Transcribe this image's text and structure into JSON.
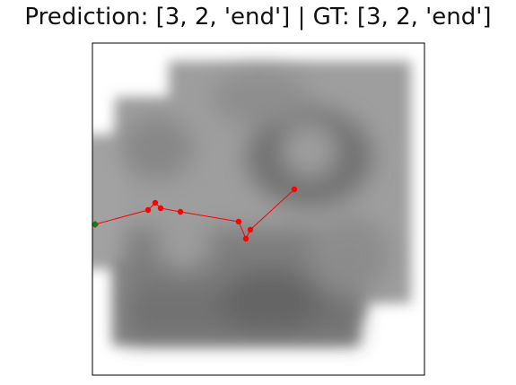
{
  "title": "Prediction: [3, 2, 'end'] | GT: [3, 2, 'end']",
  "chart_data": {
    "type": "line",
    "title": "Prediction: [3, 2, 'end'] | GT: [3, 2, 'end']",
    "xlabel": "",
    "ylabel": "",
    "grid": false,
    "axes_ticks": false,
    "xlim": [
      0,
      370
    ],
    "ylim": [
      0,
      370
    ],
    "background": "blurred grayscale occupancy map",
    "series": [
      {
        "role": "trajectory",
        "color": "#ff0000",
        "marker": "circle",
        "x": [
          3,
          62,
          70,
          76,
          98,
          163,
          171,
          176,
          225
        ],
        "y": [
          202,
          186,
          178,
          184,
          188,
          199,
          218,
          208,
          163
        ]
      },
      {
        "role": "start",
        "color": "#1a7a1a",
        "marker": "diamond",
        "x": [
          3
        ],
        "y": [
          202
        ]
      }
    ]
  },
  "colors": {
    "trajectory": "#ff0000",
    "start": "#1a7a1a",
    "frame": "#000000"
  }
}
